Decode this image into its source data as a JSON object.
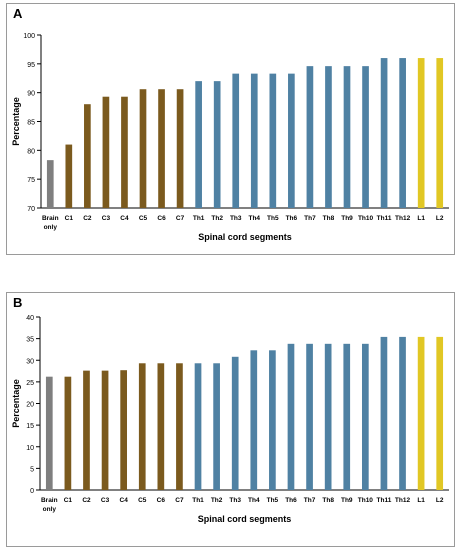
{
  "colors": {
    "brain": "#7f7f7f",
    "cervical": "#7b5a1e",
    "thoracic": "#4f81a3",
    "lumbar": "#e1c724",
    "axis": "#000000"
  },
  "chart_data": [
    {
      "type": "bar",
      "panel_label": "A",
      "title": "",
      "xlabel": "Spinal cord segments",
      "ylabel": "Percentage",
      "ylim": [
        70,
        100
      ],
      "yticks": [
        70,
        75,
        80,
        85,
        90,
        95,
        100
      ],
      "grid": false,
      "categories": [
        "Brain\nonly",
        "C1",
        "C2",
        "C3",
        "C4",
        "C5",
        "C6",
        "C7",
        "Th1",
        "Th2",
        "Th3",
        "Th4",
        "Th5",
        "Th6",
        "Th7",
        "Th8",
        "Th9",
        "Th10",
        "Th11",
        "Th12",
        "L1",
        "L2"
      ],
      "groups": [
        "brain",
        "cervical",
        "cervical",
        "cervical",
        "cervical",
        "cervical",
        "cervical",
        "cervical",
        "thoracic",
        "thoracic",
        "thoracic",
        "thoracic",
        "thoracic",
        "thoracic",
        "thoracic",
        "thoracic",
        "thoracic",
        "thoracic",
        "thoracic",
        "thoracic",
        "lumbar",
        "lumbar"
      ],
      "values": [
        78.3,
        81.0,
        88.0,
        89.3,
        89.3,
        90.6,
        90.6,
        90.6,
        92.0,
        92.0,
        93.3,
        93.3,
        93.3,
        93.3,
        94.6,
        94.6,
        94.6,
        94.6,
        96.0,
        96.0,
        96.0,
        96.0
      ]
    },
    {
      "type": "bar",
      "panel_label": "B",
      "title": "",
      "xlabel": "Spinal cord segments",
      "ylabel": "Percentage",
      "ylim": [
        0,
        40
      ],
      "yticks": [
        0,
        5,
        10,
        15,
        20,
        25,
        30,
        35,
        40
      ],
      "grid": false,
      "categories": [
        "Brain\nonly",
        "C1",
        "C2",
        "C3",
        "C4",
        "C5",
        "C6",
        "C7",
        "Th1",
        "Th2",
        "Th3",
        "Th4",
        "Th5",
        "Th6",
        "Th7",
        "Th8",
        "Th9",
        "Th10",
        "Th11",
        "Th12",
        "L1",
        "L2"
      ],
      "groups": [
        "brain",
        "cervical",
        "cervical",
        "cervical",
        "cervical",
        "cervical",
        "cervical",
        "cervical",
        "thoracic",
        "thoracic",
        "thoracic",
        "thoracic",
        "thoracic",
        "thoracic",
        "thoracic",
        "thoracic",
        "thoracic",
        "thoracic",
        "thoracic",
        "thoracic",
        "lumbar",
        "lumbar"
      ],
      "values": [
        26.2,
        26.2,
        27.6,
        27.6,
        27.7,
        29.3,
        29.3,
        29.3,
        29.3,
        29.3,
        30.8,
        32.3,
        32.3,
        33.8,
        33.8,
        33.8,
        33.8,
        33.8,
        35.4,
        35.4,
        35.4,
        35.4
      ]
    }
  ]
}
